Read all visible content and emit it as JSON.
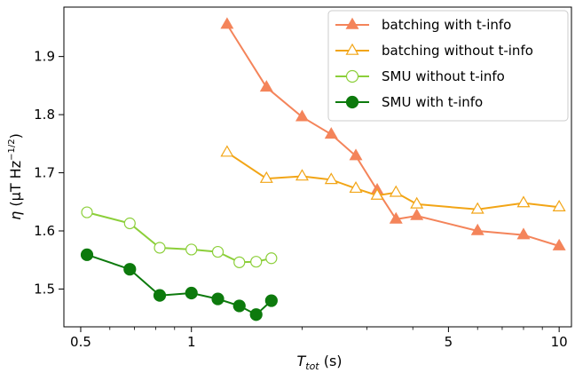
{
  "chart_data": {
    "type": "line",
    "xscale": "log",
    "xlim": [
      0.45,
      10.8
    ],
    "ylim": [
      1.435,
      1.985
    ],
    "grid": false,
    "legend_position": "top-right",
    "xlabel_main": "T",
    "xlabel_sub": "tot",
    "xlabel_unit": " (s)",
    "ylabel": "η (μT Hz⁻¹ᐟ²)",
    "ylabel_parts": {
      "eta": "η",
      "main": " (μT Hz",
      "sup": "−1/2",
      "close": ")"
    },
    "xticks": [
      {
        "value": 0.5,
        "label": "0.5"
      },
      {
        "value": 1,
        "label": "1"
      },
      {
        "value": 5,
        "label": "5"
      },
      {
        "value": 10,
        "label": "10"
      }
    ],
    "yticks": [
      {
        "value": 1.5,
        "label": "1.5"
      },
      {
        "value": 1.6,
        "label": "1.6"
      },
      {
        "value": 1.7,
        "label": "1.7"
      },
      {
        "value": 1.8,
        "label": "1.8"
      },
      {
        "value": 1.9,
        "label": "1.9"
      }
    ],
    "series": [
      {
        "name": "batching with t-info",
        "color": "#f4845a",
        "marker": "triangle",
        "filled": true,
        "x": [
          1.25,
          1.6,
          2.0,
          2.4,
          2.8,
          3.2,
          3.6,
          4.1,
          6.0,
          8.0,
          10.0
        ],
        "y": [
          1.955,
          1.847,
          1.796,
          1.766,
          1.729,
          1.67,
          1.62,
          1.626,
          1.6,
          1.593,
          1.574
        ]
      },
      {
        "name": "batching without t-info",
        "color": "#f2a516",
        "marker": "triangle",
        "filled": false,
        "x": [
          1.25,
          1.6,
          2.0,
          2.4,
          2.8,
          3.2,
          3.6,
          4.1,
          6.0,
          8.0,
          10.0
        ],
        "y": [
          1.735,
          1.69,
          1.694,
          1.688,
          1.673,
          1.661,
          1.666,
          1.646,
          1.637,
          1.648,
          1.641
        ]
      },
      {
        "name": "SMU without t-info",
        "color": "#8ccf3a",
        "marker": "circle",
        "filled": false,
        "x": [
          0.52,
          0.68,
          0.82,
          1.0,
          1.18,
          1.35,
          1.5,
          1.65
        ],
        "y": [
          1.632,
          1.613,
          1.571,
          1.568,
          1.564,
          1.546,
          1.547,
          1.553
        ]
      },
      {
        "name": "SMU with t-info",
        "color": "#0d7a0d",
        "marker": "circle",
        "filled": true,
        "x": [
          0.52,
          0.68,
          0.82,
          1.0,
          1.18,
          1.35,
          1.5,
          1.65
        ],
        "y": [
          1.559,
          1.534,
          1.489,
          1.493,
          1.483,
          1.471,
          1.456,
          1.48
        ]
      }
    ]
  }
}
